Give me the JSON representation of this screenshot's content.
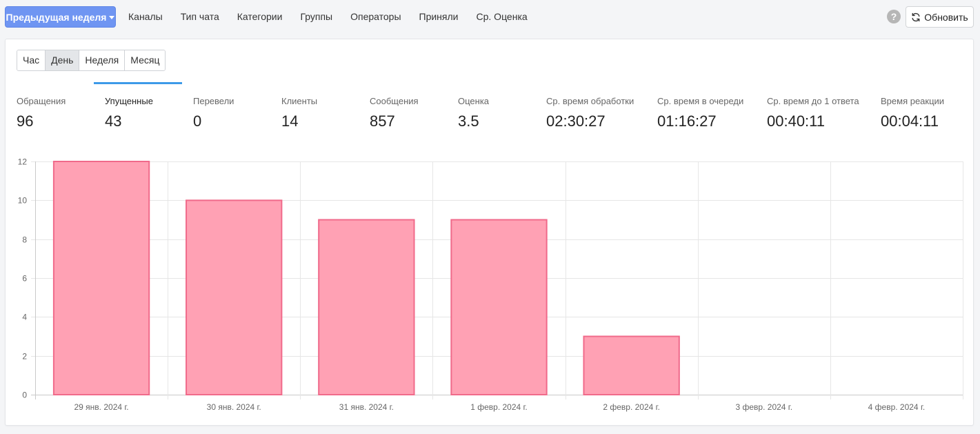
{
  "nav": {
    "period_label": "Предыдущая неделя",
    "links": [
      "Каналы",
      "Тип чата",
      "Категории",
      "Группы",
      "Операторы",
      "Приняли",
      "Ср. Оценка"
    ],
    "help_label": "?",
    "refresh_label": "Обновить"
  },
  "granularity": {
    "options": [
      "Час",
      "День",
      "Неделя",
      "Месяц"
    ],
    "selected": "День"
  },
  "metrics": [
    {
      "label": "Обращения",
      "value": "96"
    },
    {
      "label": "Упущенные",
      "value": "43"
    },
    {
      "label": "Перевели",
      "value": "0"
    },
    {
      "label": "Клиенты",
      "value": "14"
    },
    {
      "label": "Сообщения",
      "value": "857"
    },
    {
      "label": "Оценка",
      "value": "3.5"
    },
    {
      "label": "Ср. время обработки",
      "value": "02:30:27"
    },
    {
      "label": "Ср. время в очереди",
      "value": "01:16:27"
    },
    {
      "label": "Ср. время до 1 ответа",
      "value": "00:40:11"
    },
    {
      "label": "Время реакции",
      "value": "00:04:11"
    }
  ],
  "active_metric": "Упущенные",
  "colors": {
    "accent": "#6f95f2",
    "tab_underline": "#3d9ae8",
    "bar_fill": "#ffa1b4",
    "bar_stroke": "#f06a8a"
  },
  "chart_data": {
    "type": "bar",
    "categories": [
      "29 янв. 2024 г.",
      "30 янв. 2024 г.",
      "31 янв. 2024 г.",
      "1 февр. 2024 г.",
      "2 февр. 2024 г.",
      "3 февр. 2024 г.",
      "4 февр. 2024 г."
    ],
    "values": [
      12,
      10,
      9,
      9,
      3,
      0,
      0
    ],
    "ylim": [
      0,
      12
    ],
    "yticks": [
      0,
      2,
      4,
      6,
      8,
      10,
      12
    ],
    "grid": true,
    "legend": "none"
  }
}
